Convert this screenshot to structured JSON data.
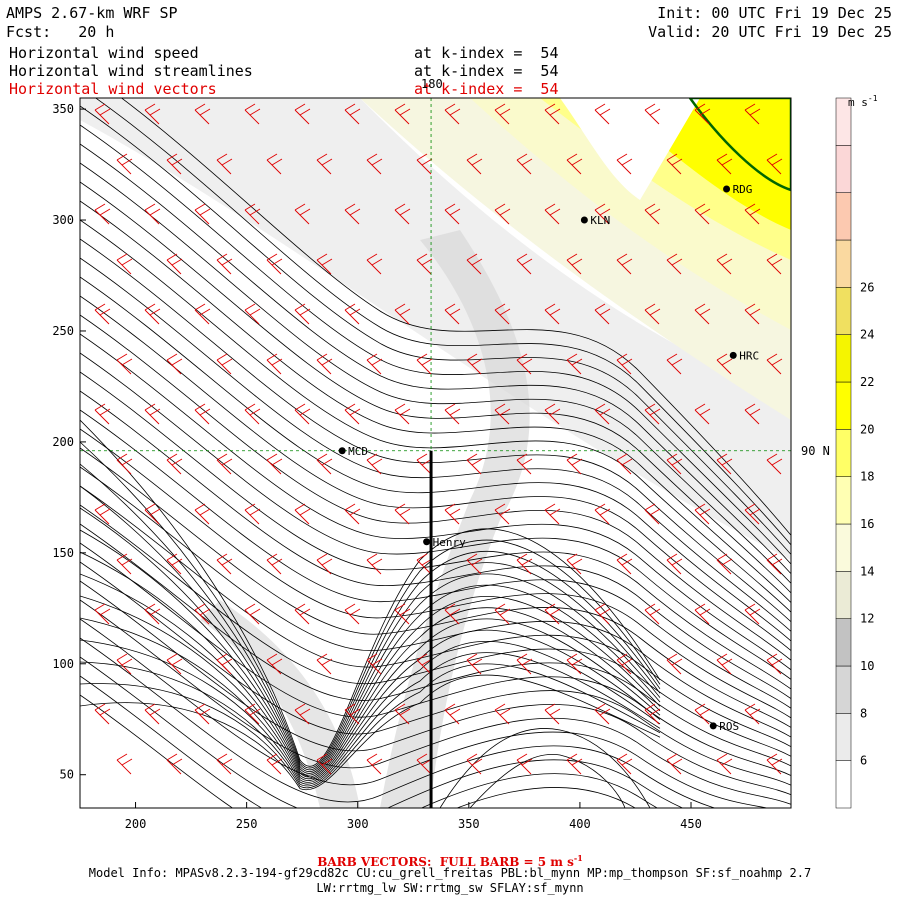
{
  "header": {
    "model": "AMPS 2.67-km WRF SP",
    "fcst": "Fcst:   20 h",
    "init": "Init: 00 UTC Fri 19 Dec 25",
    "valid": "Valid: 20 UTC Fri 19 Dec 25",
    "layers": [
      {
        "name": "Horizontal wind speed",
        "level": "at k-index =  54",
        "color": "#000000"
      },
      {
        "name": "Horizontal wind streamlines",
        "level": "at k-index =  54",
        "color": "#000000"
      },
      {
        "name": "Horizontal wind vectors",
        "level": "at k-index =  54",
        "color": "#e00000"
      }
    ]
  },
  "map": {
    "x_ticks": [
      "200",
      "250",
      "300",
      "350",
      "400",
      "450"
    ],
    "y_ticks": [
      "50",
      "100",
      "150",
      "200",
      "250",
      "300",
      "350"
    ],
    "xlim": [
      175,
      495
    ],
    "ylim": [
      35,
      355
    ],
    "meridian_label": "180",
    "parallel_label": "90 N",
    "stations": [
      {
        "name": "KLN",
        "x": 402,
        "y": 300
      },
      {
        "name": "RDG",
        "x": 466,
        "y": 314
      },
      {
        "name": "HRC",
        "x": 469,
        "y": 239
      },
      {
        "name": "MCD",
        "x": 293,
        "y": 196
      },
      {
        "name": "Henry",
        "x": 331,
        "y": 155
      },
      {
        "name": "ROS",
        "x": 460,
        "y": 72
      }
    ],
    "cross_section": {
      "x": 333,
      "y_from": 35,
      "y_to": 196
    }
  },
  "colorbar": {
    "unit": "m s",
    "unit_exp": "-1",
    "labels": [
      "6",
      "8",
      "10",
      "12",
      "14",
      "16",
      "18",
      "20",
      "22",
      "24",
      "26"
    ],
    "colors": [
      "#ffffff",
      "#ebebeb",
      "#d6d6d6",
      "#c2c2c2",
      "#ebebd6",
      "#fafadc",
      "#ffffb3",
      "#ffff66",
      "#ffff00",
      "#f5f500",
      "#f0e060",
      "#fad9a0",
      "#fcc9b0",
      "#fbd7d7",
      "#fde6e6"
    ]
  },
  "footer": {
    "barb_title": "BARB VECTORS:  FULL BARB = 5 m s",
    "barb_exp": "-1",
    "model_info": "Model Info: MPASv8.2.3-194-gf29cd82c CU:cu_grell_freitas PBL:bl_mynn MP:mp_thompson SF:sf_noahmp 2.7",
    "model_info2": "LW:rrtmg_lw SW:rrtmg_sw SFLAY:sf_mynn"
  },
  "colors": {
    "barbs": "#e00000",
    "grid": "#008800",
    "coast": "#006600"
  }
}
